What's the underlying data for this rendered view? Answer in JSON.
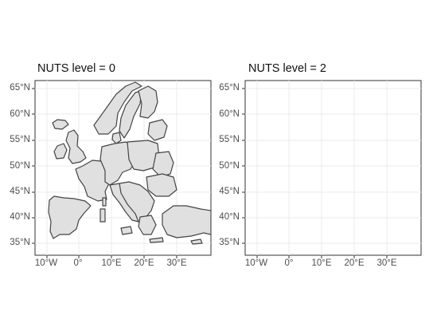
{
  "panels": [
    {
      "title": "NUTS level = 0",
      "y_ticks": [
        "65°N",
        "60°N",
        "55°N",
        "50°N",
        "45°N",
        "40°N",
        "35°N"
      ],
      "x_ticks": [
        "10°W",
        "0°",
        "10°E",
        "20°E",
        "30°E"
      ]
    },
    {
      "title": "NUTS level = 2",
      "y_ticks": [
        "65°N",
        "60°N",
        "55°N",
        "50°N",
        "45°N",
        "40°N",
        "35°N"
      ],
      "x_ticks": [
        "10°W",
        "0°",
        "10°E",
        "20°E",
        "30°E"
      ]
    }
  ],
  "style": {
    "fill": "#e0e0e0",
    "stroke": "#444444",
    "grid": "#ebebeb",
    "axis_text": "#4d4d4d"
  }
}
